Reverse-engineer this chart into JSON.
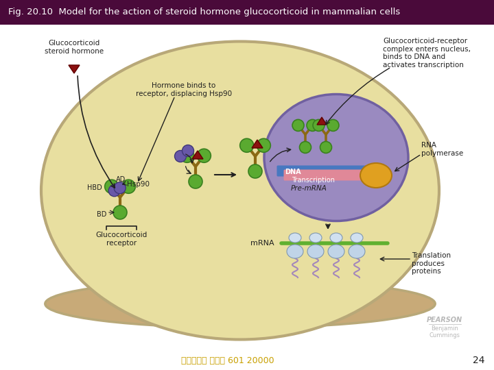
{
  "title": "Fig. 20.10  Model for the action of steroid hormone glucocorticoid in mammalian cells",
  "title_bg": "#4a0a3a",
  "title_color": "#ffffff",
  "bg_color": "#ffffff",
  "cell_color": "#e8dfa0",
  "cell_edge_color": "#b8a878",
  "cell_bottom_color": "#c8aa78",
  "nucleus_color": "#9a8ac0",
  "nucleus_edge_color": "#7060a0",
  "dna_color_blue": "#4878c0",
  "dna_color_pink": "#e08898",
  "polymerase_color": "#e0a020",
  "green_circle": "#5aaa30",
  "purple_circle": "#6858a8",
  "dark_red_triangle": "#8b1010",
  "arrow_color": "#202020",
  "label_color": "#202020",
  "bottom_text": "台大農藝系 遗傳學 601 20000",
  "bottom_text_color": "#c8a000",
  "page_num": "24",
  "pearson_text": "PEARSON",
  "bc_text": "Benjamin\nCummings",
  "watermark_color": "#b8b8b8"
}
